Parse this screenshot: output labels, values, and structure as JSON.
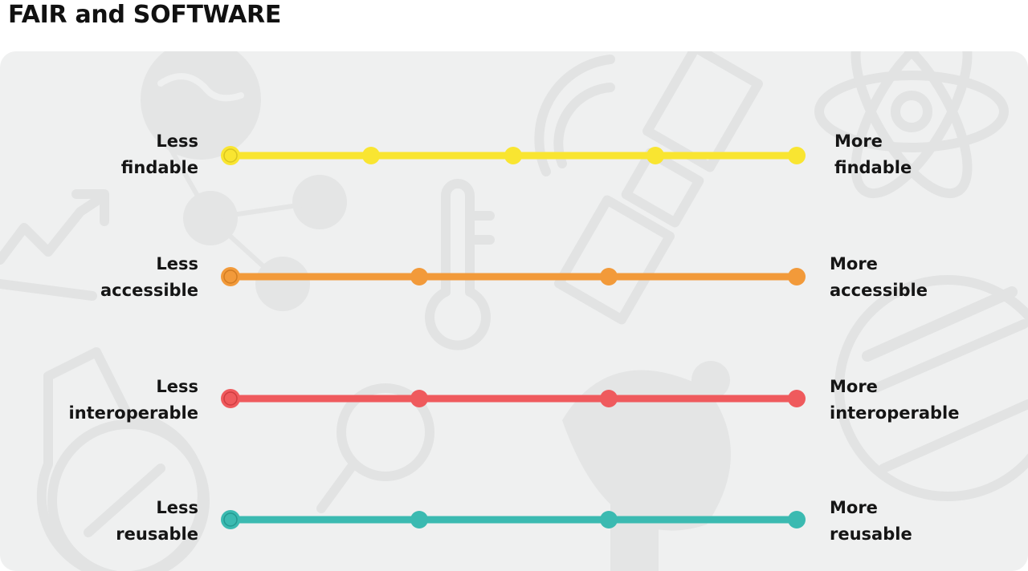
{
  "title": "FAIR and SOFTWARE",
  "scales": [
    {
      "left_label": [
        "Less",
        "findable"
      ],
      "right_label": [
        "More",
        "findable"
      ],
      "color": "#f9e531",
      "points": 5
    },
    {
      "left_label": [
        "Less",
        "accessible"
      ],
      "right_label": [
        "More",
        "accessible"
      ],
      "color": "#f29a3a",
      "points": 4
    },
    {
      "left_label": [
        "Less",
        "interoperable"
      ],
      "right_label": [
        "More",
        "interoperable"
      ],
      "color": "#ef5a5d",
      "points": 4
    },
    {
      "left_label": [
        "Less",
        "reusable"
      ],
      "right_label": [
        "More",
        "reusable"
      ],
      "color": "#3bbab1",
      "points": 4
    }
  ],
  "background_icons": [
    "globe-icon",
    "trend-arrow-icon",
    "molecule-icon",
    "thermometer-icon",
    "satellite-icon",
    "atom-icon",
    "flask-icon",
    "magnifier-icon",
    "satellite-dish-icon",
    "dna-icon"
  ]
}
